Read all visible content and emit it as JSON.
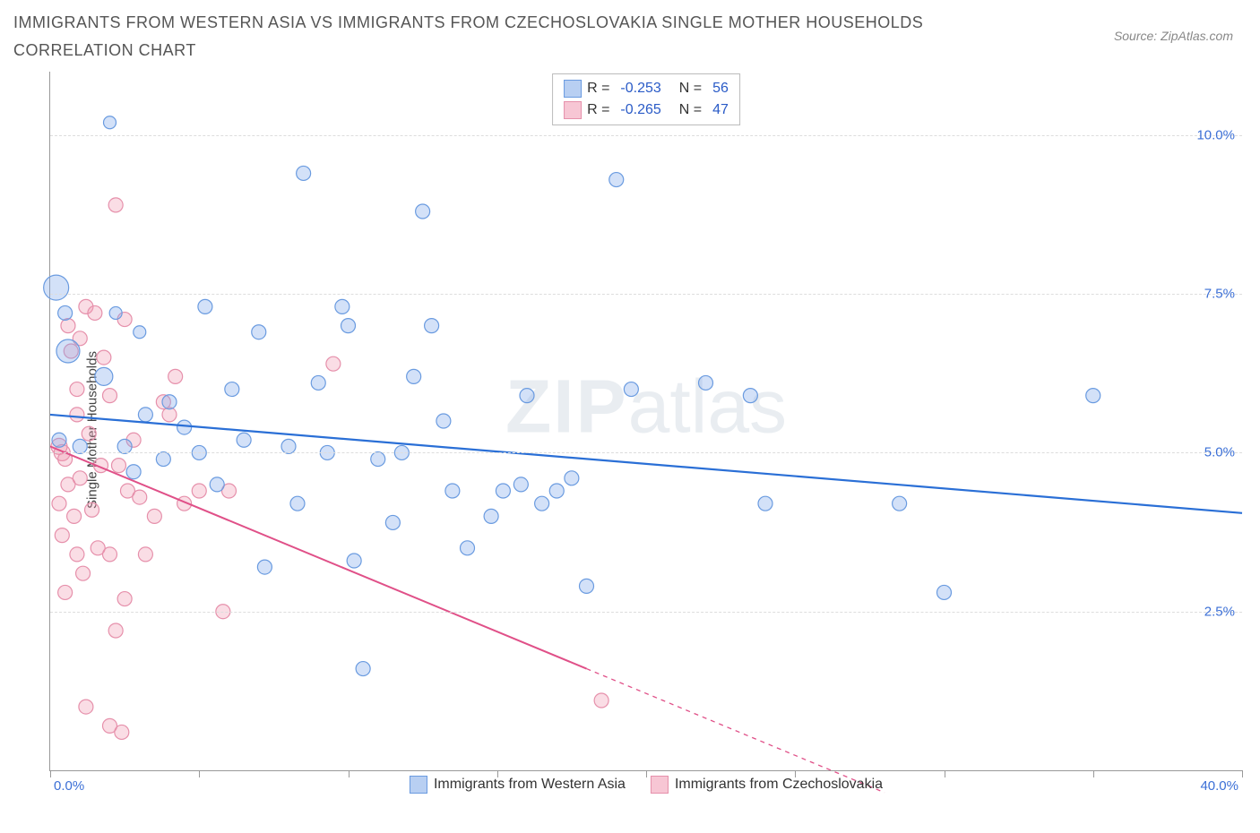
{
  "title": "IMMIGRANTS FROM WESTERN ASIA VS IMMIGRANTS FROM CZECHOSLOVAKIA SINGLE MOTHER HOUSEHOLDS CORRELATION CHART",
  "source": "Source: ZipAtlas.com",
  "watermark_main": "ZIP",
  "watermark_sub": "atlas",
  "chart": {
    "type": "scatter",
    "xlim": [
      0,
      40
    ],
    "ylim": [
      0,
      11
    ],
    "x_tick_positions": [
      0,
      5,
      10,
      15,
      20,
      25,
      30,
      35,
      40
    ],
    "x_label_min": "0.0%",
    "x_label_max": "40.0%",
    "y_gridlines": [
      2.5,
      5.0,
      7.5,
      10.0
    ],
    "y_labels": [
      "2.5%",
      "5.0%",
      "7.5%",
      "10.0%"
    ],
    "y_axis_title": "Single Mother Households",
    "background_color": "#ffffff",
    "grid_color": "#dddddd",
    "series": [
      {
        "name": "Immigrants from Western Asia",
        "color_fill": "rgba(130,170,235,0.35)",
        "color_stroke": "#6a9be0",
        "swatch_fill": "#b8cff2",
        "swatch_border": "#6a9be0",
        "marker_stroke_width": 1.2,
        "R": "-0.253",
        "N": "56",
        "trend": {
          "x1": 0,
          "y1": 5.6,
          "x2": 40,
          "y2": 4.05,
          "color": "#2a6fd6",
          "width": 2.2
        },
        "points": [
          {
            "x": 0.2,
            "y": 7.6,
            "r": 14
          },
          {
            "x": 0.6,
            "y": 6.6,
            "r": 13
          },
          {
            "x": 0.3,
            "y": 5.2,
            "r": 8
          },
          {
            "x": 0.5,
            "y": 7.2,
            "r": 8
          },
          {
            "x": 1.8,
            "y": 6.2,
            "r": 10
          },
          {
            "x": 2.0,
            "y": 10.2,
            "r": 7
          },
          {
            "x": 3.0,
            "y": 6.9,
            "r": 7
          },
          {
            "x": 2.2,
            "y": 7.2,
            "r": 7
          },
          {
            "x": 4.0,
            "y": 5.8,
            "r": 8
          },
          {
            "x": 5.2,
            "y": 7.3,
            "r": 8
          },
          {
            "x": 5.0,
            "y": 5.0,
            "r": 8
          },
          {
            "x": 5.6,
            "y": 4.5,
            "r": 8
          },
          {
            "x": 6.1,
            "y": 6.0,
            "r": 8
          },
          {
            "x": 7.0,
            "y": 6.9,
            "r": 8
          },
          {
            "x": 7.2,
            "y": 3.2,
            "r": 8
          },
          {
            "x": 8.0,
            "y": 5.1,
            "r": 8
          },
          {
            "x": 8.3,
            "y": 4.2,
            "r": 8
          },
          {
            "x": 8.5,
            "y": 9.4,
            "r": 8
          },
          {
            "x": 9.0,
            "y": 6.1,
            "r": 8
          },
          {
            "x": 9.3,
            "y": 5.0,
            "r": 8
          },
          {
            "x": 9.8,
            "y": 7.3,
            "r": 8
          },
          {
            "x": 10.0,
            "y": 7.0,
            "r": 8
          },
          {
            "x": 10.2,
            "y": 3.3,
            "r": 8
          },
          {
            "x": 10.5,
            "y": 1.6,
            "r": 8
          },
          {
            "x": 11.0,
            "y": 4.9,
            "r": 8
          },
          {
            "x": 11.5,
            "y": 3.9,
            "r": 8
          },
          {
            "x": 12.5,
            "y": 8.8,
            "r": 8
          },
          {
            "x": 12.2,
            "y": 6.2,
            "r": 8
          },
          {
            "x": 12.8,
            "y": 7.0,
            "r": 8
          },
          {
            "x": 13.2,
            "y": 5.5,
            "r": 8
          },
          {
            "x": 13.5,
            "y": 4.4,
            "r": 8
          },
          {
            "x": 14.0,
            "y": 3.5,
            "r": 8
          },
          {
            "x": 14.8,
            "y": 4.0,
            "r": 8
          },
          {
            "x": 15.2,
            "y": 4.4,
            "r": 8
          },
          {
            "x": 16.0,
            "y": 5.9,
            "r": 8
          },
          {
            "x": 16.5,
            "y": 4.2,
            "r": 8
          },
          {
            "x": 17.0,
            "y": 4.4,
            "r": 8
          },
          {
            "x": 17.5,
            "y": 4.6,
            "r": 8
          },
          {
            "x": 18.0,
            "y": 2.9,
            "r": 8
          },
          {
            "x": 19.0,
            "y": 9.3,
            "r": 8
          },
          {
            "x": 19.5,
            "y": 6.0,
            "r": 8
          },
          {
            "x": 22.0,
            "y": 6.1,
            "r": 8
          },
          {
            "x": 23.5,
            "y": 5.9,
            "r": 8
          },
          {
            "x": 24.0,
            "y": 4.2,
            "r": 8
          },
          {
            "x": 28.5,
            "y": 4.2,
            "r": 8
          },
          {
            "x": 30.0,
            "y": 2.8,
            "r": 8
          },
          {
            "x": 35.0,
            "y": 5.9,
            "r": 8
          },
          {
            "x": 3.8,
            "y": 4.9,
            "r": 8
          },
          {
            "x": 4.5,
            "y": 5.4,
            "r": 8
          },
          {
            "x": 2.5,
            "y": 5.1,
            "r": 8
          },
          {
            "x": 2.8,
            "y": 4.7,
            "r": 8
          },
          {
            "x": 1.0,
            "y": 5.1,
            "r": 8
          },
          {
            "x": 6.5,
            "y": 5.2,
            "r": 8
          },
          {
            "x": 11.8,
            "y": 5.0,
            "r": 8
          },
          {
            "x": 3.2,
            "y": 5.6,
            "r": 8
          },
          {
            "x": 15.8,
            "y": 4.5,
            "r": 8
          }
        ]
      },
      {
        "name": "Immigrants from Czechoslovakia",
        "color_fill": "rgba(240,150,175,0.32)",
        "color_stroke": "#e690ab",
        "swatch_fill": "#f7c6d4",
        "swatch_border": "#e690ab",
        "marker_stroke_width": 1.2,
        "R": "-0.265",
        "N": "47",
        "trend": {
          "x1": 0,
          "y1": 5.1,
          "x2": 18,
          "y2": 1.6,
          "color": "#e05088",
          "width": 2.0,
          "extend_x2": 28,
          "extend_y2": -0.35
        },
        "points": [
          {
            "x": 0.3,
            "y": 5.1,
            "r": 9
          },
          {
            "x": 0.4,
            "y": 5.0,
            "r": 9
          },
          {
            "x": 0.5,
            "y": 4.9,
            "r": 8
          },
          {
            "x": 0.6,
            "y": 4.5,
            "r": 8
          },
          {
            "x": 0.3,
            "y": 4.2,
            "r": 8
          },
          {
            "x": 0.8,
            "y": 4.0,
            "r": 8
          },
          {
            "x": 0.4,
            "y": 3.7,
            "r": 8
          },
          {
            "x": 0.9,
            "y": 3.4,
            "r": 8
          },
          {
            "x": 0.5,
            "y": 2.8,
            "r": 8
          },
          {
            "x": 1.2,
            "y": 7.3,
            "r": 8
          },
          {
            "x": 1.5,
            "y": 7.2,
            "r": 8
          },
          {
            "x": 1.0,
            "y": 6.8,
            "r": 8
          },
          {
            "x": 1.8,
            "y": 6.5,
            "r": 8
          },
          {
            "x": 2.2,
            "y": 8.9,
            "r": 8
          },
          {
            "x": 2.5,
            "y": 7.1,
            "r": 8
          },
          {
            "x": 2.0,
            "y": 5.9,
            "r": 8
          },
          {
            "x": 2.8,
            "y": 5.2,
            "r": 8
          },
          {
            "x": 2.3,
            "y": 4.8,
            "r": 8
          },
          {
            "x": 2.6,
            "y": 4.4,
            "r": 8
          },
          {
            "x": 3.0,
            "y": 4.3,
            "r": 8
          },
          {
            "x": 3.5,
            "y": 4.0,
            "r": 8
          },
          {
            "x": 1.6,
            "y": 3.5,
            "r": 8
          },
          {
            "x": 2.0,
            "y": 3.4,
            "r": 8
          },
          {
            "x": 2.5,
            "y": 2.7,
            "r": 8
          },
          {
            "x": 2.2,
            "y": 2.2,
            "r": 8
          },
          {
            "x": 2.0,
            "y": 0.7,
            "r": 8
          },
          {
            "x": 2.4,
            "y": 0.6,
            "r": 8
          },
          {
            "x": 3.8,
            "y": 5.8,
            "r": 8
          },
          {
            "x": 4.2,
            "y": 6.2,
            "r": 8
          },
          {
            "x": 4.0,
            "y": 5.6,
            "r": 8
          },
          {
            "x": 4.5,
            "y": 4.2,
            "r": 8
          },
          {
            "x": 5.0,
            "y": 4.4,
            "r": 8
          },
          {
            "x": 5.8,
            "y": 2.5,
            "r": 8
          },
          {
            "x": 6.0,
            "y": 4.4,
            "r": 8
          },
          {
            "x": 9.5,
            "y": 6.4,
            "r": 8
          },
          {
            "x": 1.0,
            "y": 4.6,
            "r": 8
          },
          {
            "x": 1.3,
            "y": 5.3,
            "r": 8
          },
          {
            "x": 0.7,
            "y": 6.6,
            "r": 8
          },
          {
            "x": 0.9,
            "y": 6.0,
            "r": 8
          },
          {
            "x": 1.4,
            "y": 4.1,
            "r": 8
          },
          {
            "x": 1.7,
            "y": 4.8,
            "r": 8
          },
          {
            "x": 1.1,
            "y": 3.1,
            "r": 8
          },
          {
            "x": 3.2,
            "y": 3.4,
            "r": 8
          },
          {
            "x": 0.6,
            "y": 7.0,
            "r": 8
          },
          {
            "x": 18.5,
            "y": 1.1,
            "r": 8
          },
          {
            "x": 1.2,
            "y": 1.0,
            "r": 8
          },
          {
            "x": 0.9,
            "y": 5.6,
            "r": 8
          }
        ]
      }
    ],
    "legend_bottom": [
      {
        "swatch_fill": "#b8cff2",
        "swatch_border": "#6a9be0",
        "label": "Immigrants from Western Asia"
      },
      {
        "swatch_fill": "#f7c6d4",
        "swatch_border": "#e690ab",
        "label": "Immigrants from Czechoslovakia"
      }
    ]
  }
}
